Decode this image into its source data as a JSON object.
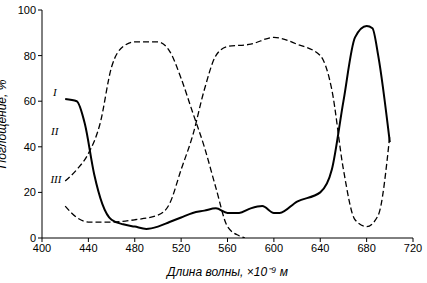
{
  "chart_data": {
    "type": "line",
    "xlabel": "Длина волны, ×10⁻⁹ м",
    "ylabel": "Поглощение, %",
    "xlim": [
      400,
      720
    ],
    "xticks": [
      400,
      440,
      480,
      520,
      560,
      600,
      640,
      680,
      720
    ],
    "ylim": [
      0,
      100
    ],
    "yticks": [
      0,
      20,
      40,
      60,
      80,
      100
    ],
    "grid": false,
    "series": [
      {
        "name": "I",
        "color": "#000000",
        "line_style": "solid",
        "x": [
          420,
          430,
          437,
          445,
          452,
          460,
          470,
          480,
          490,
          500,
          510,
          520,
          530,
          540,
          550,
          560,
          570,
          580,
          590,
          600,
          605,
          620,
          640,
          650,
          660,
          670,
          680,
          685,
          690,
          700
        ],
        "values": [
          61,
          60,
          50,
          28,
          15,
          8,
          6,
          5,
          4,
          5,
          7,
          9,
          11,
          12,
          13,
          11,
          11,
          13,
          14,
          11,
          11,
          16,
          20,
          30,
          60,
          88,
          93,
          92,
          80,
          42
        ]
      },
      {
        "name": "II",
        "color": "#000000",
        "line_style": "dashed",
        "x": [
          420,
          430,
          440,
          450,
          460,
          470,
          480,
          500,
          510,
          520,
          530,
          540,
          550,
          560,
          570,
          575
        ],
        "values": [
          25,
          30,
          37,
          50,
          75,
          84,
          86,
          86,
          82,
          70,
          55,
          40,
          22,
          5,
          1,
          0
        ]
      },
      {
        "name": "III",
        "color": "#000000",
        "line_style": "dashed",
        "x": [
          420,
          430,
          440,
          460,
          480,
          500,
          510,
          520,
          530,
          540,
          550,
          560,
          580,
          600,
          620,
          640,
          650,
          660,
          670,
          680,
          690,
          700
        ],
        "values": [
          14,
          9,
          7,
          7,
          8,
          10,
          15,
          30,
          45,
          65,
          80,
          84,
          85,
          88,
          85,
          80,
          65,
          30,
          8,
          5,
          10,
          45
        ]
      }
    ],
    "annotations": [
      {
        "text": "I",
        "x": 411,
        "y": 64
      },
      {
        "text": "II",
        "x": 411,
        "y": 47
      },
      {
        "text": "III",
        "x": 412,
        "y": 26
      }
    ]
  }
}
